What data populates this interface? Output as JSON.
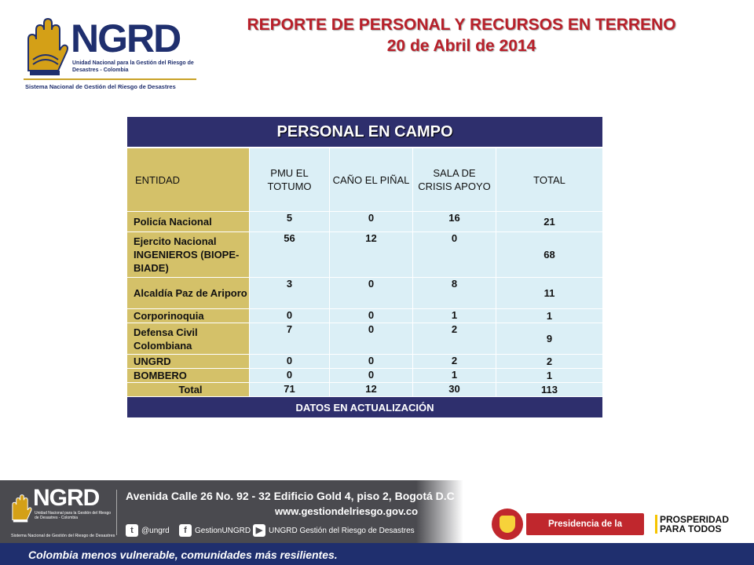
{
  "header": {
    "logo": {
      "acronym": "NGRD",
      "line1": "Unidad Nacional para la Gestión del Riesgo de Desastres - Colombia",
      "line2": "Sistema Nacional de Gestión del Riesgo de Desastres"
    },
    "title_line1": "REPORTE DE PERSONAL Y RECURSOS EN TERRENO",
    "title_line2": "20 de Abril de 2014"
  },
  "table": {
    "title": "PERSONAL EN CAMPO",
    "columns": [
      "ENTIDAD",
      "PMU EL TOTUMO",
      "CAÑO EL PIÑAL",
      "SALA DE CRISIS APOYO",
      "TOTAL"
    ],
    "rows": [
      {
        "entidad": "Policía Nacional",
        "pmu": "5",
        "cano": "0",
        "sala": "16",
        "total": "21"
      },
      {
        "entidad": "Ejercito Nacional INGENIEROS (BIOPE-BIADE)",
        "pmu": "56",
        "cano": "12",
        "sala": "0",
        "total": "68"
      },
      {
        "entidad": "Alcaldía Paz de Ariporo",
        "pmu": "3",
        "cano": "0",
        "sala": "8",
        "total": "11"
      },
      {
        "entidad": "Corporinoquia",
        "pmu": "0",
        "cano": "0",
        "sala": "1",
        "total": "1"
      },
      {
        "entidad": "Defensa Civil Colombiana",
        "pmu": "7",
        "cano": "0",
        "sala": "2",
        "total": "9"
      },
      {
        "entidad": "UNGRD",
        "pmu": "0",
        "cano": "0",
        "sala": "2",
        "total": "2"
      },
      {
        "entidad": "BOMBERO",
        "pmu": "0",
        "cano": "0",
        "sala": "1",
        "total": "1"
      }
    ],
    "totals": {
      "label": "Total",
      "pmu": "71",
      "cano": "12",
      "sala": "30",
      "total": "113"
    },
    "footer": "DATOS EN ACTUALIZACIÓN"
  },
  "footer": {
    "logo_acronym": "NGRD",
    "logo_line1": "Unidad Nacional para la Gestión del Riesgo de Desastres - Colombia",
    "logo_line2": "Sistema Nacional de Gestión del Riesgo de Desastres",
    "address": "Avenida Calle 26 No. 92 - 32 Edificio Gold 4, piso 2, Bogotá D.C",
    "website": "www.gestiondelriesgo.gov.co",
    "twitter": "@ungrd",
    "facebook": "GestionUNGRD",
    "youtube": "UNGRD Gestión del Riesgo de Desastres",
    "presidencia": "Presidencia de la República",
    "prosperidad_1": "PROSPERIDAD",
    "prosperidad_2": "PARA TODOS",
    "slogan": "Colombia menos vulnerable, comunidades más resilientes."
  },
  "colors": {
    "navy": "#2e2f6d",
    "gold": "#d4c169",
    "light_blue": "#dbeff6",
    "title_red": "#b8202a"
  }
}
